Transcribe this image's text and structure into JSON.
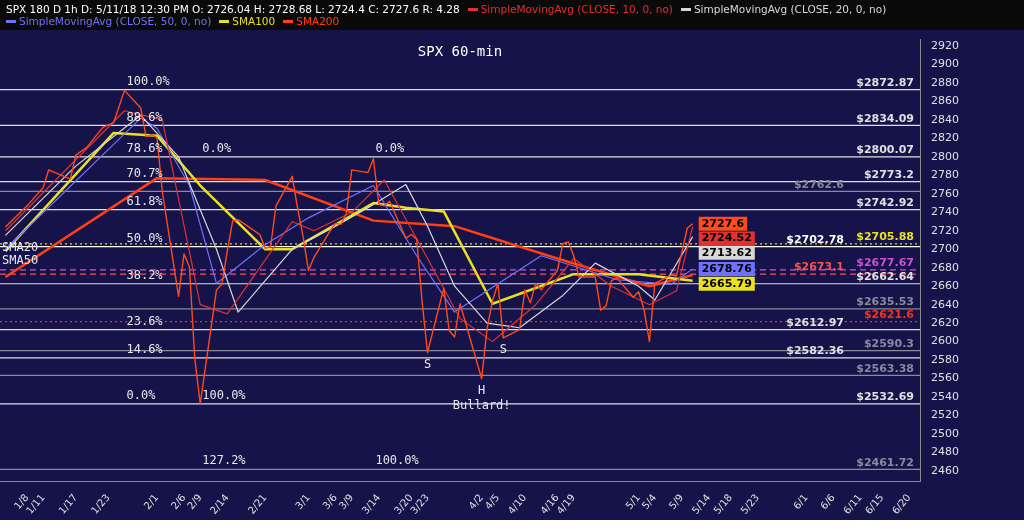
{
  "chart_data": {
    "type": "line",
    "title": "SPX 60-min",
    "subtitle": "SPX 180 D 1h  D: 5/11/18 12:30 PM  O: 2726.04  H: 2728.68  L: 2724.4  C: 2727.6  R: 4.28",
    "legend": "top left",
    "xlim": [
      "--01-03",
      "--06-22"
    ],
    "xticks": [
      {
        "value": "--01-08",
        "label": "1/8"
      },
      {
        "value": "--01-11",
        "label": "1/11"
      },
      {
        "value": "--01-17",
        "label": "1/17"
      },
      {
        "value": "--01-23",
        "label": "1/23"
      },
      {
        "value": "--02-01",
        "label": "2/1"
      },
      {
        "value": "--02-06",
        "label": "2/6"
      },
      {
        "value": "--02-09",
        "label": "2/9"
      },
      {
        "value": "--02-14",
        "label": "2/14"
      },
      {
        "value": "--02-21",
        "label": "2/21"
      },
      {
        "value": "--03-01",
        "label": "3/1"
      },
      {
        "value": "--03-06",
        "label": "3/6"
      },
      {
        "value": "--03-09",
        "label": "3/9"
      },
      {
        "value": "--03-14",
        "label": "3/14"
      },
      {
        "value": "--03-20",
        "label": "3/20"
      },
      {
        "value": "--03-23",
        "label": "3/23"
      },
      {
        "value": "--04-02",
        "label": "4/2"
      },
      {
        "value": "--04-05",
        "label": "4/5"
      },
      {
        "value": "--04-10",
        "label": "4/10"
      },
      {
        "value": "--04-16",
        "label": "4/16"
      },
      {
        "value": "--04-19",
        "label": "4/19"
      },
      {
        "value": "--05-01",
        "label": "5/1"
      },
      {
        "value": "--05-04",
        "label": "5/4"
      },
      {
        "value": "--05-09",
        "label": "5/9"
      },
      {
        "value": "--05-14",
        "label": "5/14"
      },
      {
        "value": "--05-18",
        "label": "5/18"
      },
      {
        "value": "--05-23",
        "label": "5/23"
      },
      {
        "value": "--06-01",
        "label": "6/1"
      },
      {
        "value": "--06-06",
        "label": "6/6"
      },
      {
        "value": "--06-11",
        "label": "6/11"
      },
      {
        "value": "--06-15",
        "label": "6/15"
      },
      {
        "value": "--06-20",
        "label": "6/20"
      }
    ],
    "ylim": [
      2449,
      2927
    ],
    "yticks": [
      2460,
      2480,
      2500,
      2520,
      2540,
      2560,
      2580,
      2600,
      2620,
      2640,
      2660,
      2680,
      2700,
      2720,
      2740,
      2760,
      2780,
      2800,
      2820,
      2840,
      2860,
      2880,
      2900,
      2920
    ],
    "series": [
      {
        "color": "#ff4a1a",
        "x": [
          "--01-04",
          "--01-08",
          "--01-11",
          "--01-12",
          "--01-16",
          "--01-17",
          "--01-19",
          "--01-22",
          "--01-24",
          "--01-26",
          "--01-29",
          "--01-30",
          "--01-31",
          "--02-01",
          "--02-02",
          "--02-05",
          "--02-06",
          "--02-07",
          "--02-08",
          "--02-09",
          "--02-12",
          "--02-13",
          "--02-14",
          "--02-15",
          "--02-16",
          "--02-20",
          "--02-21",
          "--02-22",
          "--02-23",
          "--02-26",
          "--02-27",
          "--02-28",
          "--03-01",
          "--03-02",
          "--03-05",
          "--03-06",
          "--03-07",
          "--03-08",
          "--03-09",
          "--03-12",
          "--03-13",
          "--03-14",
          "--03-15",
          "--03-16",
          "--03-19",
          "--03-20",
          "--03-21",
          "--03-22",
          "--03-23",
          "--03-26",
          "--03-27",
          "--03-28",
          "--03-29",
          "--04-02",
          "--04-03",
          "--04-04",
          "--04-05",
          "--04-06",
          "--04-09",
          "--04-10",
          "--04-11",
          "--04-12",
          "--04-13",
          "--04-16",
          "--04-17",
          "--04-18",
          "--04-19",
          "--04-20",
          "--04-23",
          "--04-24",
          "--04-25",
          "--04-26",
          "--04-27",
          "--04-30",
          "--05-01",
          "--05-02",
          "--05-03",
          "--05-04",
          "--05-07",
          "--05-08",
          "--05-09",
          "--05-10",
          "--05-11"
        ],
        "values": [
          2724,
          2747,
          2767,
          2786,
          2776,
          2802,
          2810,
          2832,
          2837,
          2872,
          2853,
          2822,
          2824,
          2821,
          2762,
          2649,
          2695,
          2681,
          2581,
          2533,
          2656,
          2662,
          2698,
          2731,
          2732,
          2716,
          2701,
          2703,
          2747,
          2779,
          2744,
          2714,
          2677,
          2691,
          2720,
          2728,
          2727,
          2739,
          2786,
          2783,
          2798,
          2749,
          2747,
          2752,
          2712,
          2716,
          2711,
          2643,
          2588,
          2658,
          2612,
          2605,
          2641,
          2560,
          2614,
          2644,
          2663,
          2604,
          2613,
          2656,
          2642,
          2663,
          2656,
          2677,
          2706,
          2708,
          2693,
          2670,
          2670,
          2634,
          2639,
          2666,
          2669,
          2648,
          2654,
          2635,
          2600,
          2663,
          2672,
          2671,
          2697,
          2723,
          2727.6
        ],
        "value_labels": [
          null,
          null,
          null,
          null,
          null,
          null,
          null,
          null,
          null,
          null,
          null,
          null,
          null,
          null,
          null,
          null,
          null,
          null,
          null,
          null,
          null,
          null,
          null,
          null,
          null,
          null,
          null,
          null,
          null,
          null,
          null,
          null,
          null,
          null,
          null,
          null,
          null,
          null,
          null,
          null,
          null,
          null,
          null,
          null,
          null,
          null,
          null,
          null,
          null,
          null,
          null,
          null,
          null,
          null,
          null,
          null,
          null,
          null,
          null,
          null,
          null,
          null,
          null,
          null,
          null,
          null,
          null,
          null,
          null,
          null,
          null,
          null,
          null,
          null,
          null,
          null,
          null,
          null,
          null,
          null,
          null,
          null,
          "2727.6"
        ]
      },
      {
        "name": "SimpleMovingAvg (CLOSE, 10, 0, no)",
        "color": "#e03030",
        "x": [
          "--01-04",
          "--01-26",
          "--02-02",
          "--02-09",
          "--02-14",
          "--02-26",
          "--03-02",
          "--03-09",
          "--03-15",
          "--03-23",
          "--03-29",
          "--04-04",
          "--04-12",
          "--04-19",
          "--04-26",
          "--05-03",
          "--05-08",
          "--05-11"
        ],
        "values": [
          2720,
          2850,
          2840,
          2640,
          2630,
          2730,
          2720,
          2740,
          2775,
          2690,
          2625,
          2600,
          2640,
          2690,
          2660,
          2640,
          2655,
          2724.52
        ],
        "value_labels": [
          null,
          null,
          null,
          null,
          null,
          null,
          null,
          null,
          null,
          null,
          null,
          null,
          null,
          null,
          null,
          null,
          null,
          "2724.52"
        ]
      },
      {
        "name": "SimpleMovingAvg (CLOSE, 20, 0, no)",
        "color": "#d8d8d8",
        "x": [
          "--01-04",
          "--01-17",
          "--01-29",
          "--02-05",
          "--02-12",
          "--02-16",
          "--02-26",
          "--03-06",
          "--03-12",
          "--03-19",
          "--03-23",
          "--03-28",
          "--04-03",
          "--04-09",
          "--04-17",
          "--04-23",
          "--05-01",
          "--05-04",
          "--05-11"
        ],
        "values": [
          2715,
          2790,
          2845,
          2800,
          2700,
          2632,
          2700,
          2725,
          2745,
          2770,
          2725,
          2660,
          2620,
          2615,
          2650,
          2685,
          2660,
          2645,
          2713.62
        ],
        "value_labels": [
          null,
          null,
          null,
          null,
          null,
          null,
          null,
          null,
          null,
          null,
          null,
          null,
          null,
          null,
          null,
          null,
          null,
          null,
          "2713.62"
        ]
      },
      {
        "name": "SimpleMovingAvg (CLOSE, 50, 0, no)",
        "color": "#7070ff",
        "x": [
          "--01-04",
          "--01-29",
          "--02-01",
          "--02-07",
          "--02-12",
          "--02-21",
          "--03-01",
          "--03-13",
          "--03-21",
          "--03-28",
          "--04-13",
          "--04-27",
          "--05-07",
          "--05-11"
        ],
        "values": [
          2700,
          2842,
          2831,
          2769,
          2663,
          2705,
          2734,
          2769,
          2693,
          2632,
          2693,
          2667,
          2662,
          2678.76
        ],
        "value_labels": [
          null,
          null,
          null,
          null,
          null,
          null,
          null,
          null,
          null,
          null,
          null,
          null,
          null,
          "2678.76"
        ]
      },
      {
        "name": "SMA100",
        "color": "#e8e020",
        "x": [
          "--01-04",
          "--01-24",
          "--02-01",
          "--02-09",
          "--02-21",
          "--02-26",
          "--03-13",
          "--03-19",
          "--03-26",
          "--04-04",
          "--04-19",
          "--05-01",
          "--05-11"
        ],
        "values": [
          2698,
          2826,
          2823,
          2769,
          2700,
          2700,
          2750,
          2745,
          2741,
          2641,
          2673,
          2673,
          2665.79
        ],
        "value_labels": [
          null,
          null,
          null,
          null,
          null,
          null,
          null,
          null,
          null,
          null,
          null,
          null,
          "2665.79"
        ]
      },
      {
        "name": "SMA200",
        "color": "#ff4010",
        "x": [
          "--01-04",
          "--02-01",
          "--02-21",
          "--03-13",
          "--03-28",
          "--04-16",
          "--05-03",
          "--05-11"
        ],
        "values": [
          2670,
          2777,
          2775,
          2731,
          2725,
          2690,
          2660,
          2672
        ]
      }
    ],
    "ref_lines": [
      {
        "axis": "y",
        "value": 2872.87,
        "label": "$2872.87",
        "color": "#e0e0e0"
      },
      {
        "axis": "y",
        "value": 2834.09,
        "label": "$2834.09",
        "color": "#e0e0e0"
      },
      {
        "axis": "y",
        "value": 2800.07,
        "label": "$2800.07",
        "color": "#e0e0e0"
      },
      {
        "axis": "y",
        "value": 2773.2,
        "label": "$2773.2",
        "color": "#e0e0e0"
      },
      {
        "axis": "y",
        "value": 2762.6,
        "label": "$2762.6",
        "color": "#8a8a9a"
      },
      {
        "axis": "y",
        "value": 2742.92,
        "label": "$2742.92",
        "color": "#e0e0e0"
      },
      {
        "axis": "y",
        "value": 2705.88,
        "label": "$2705.88",
        "color": "#e8e020",
        "line_style": "dotted"
      },
      {
        "axis": "y",
        "value": 2702.78,
        "label": "$2702.78",
        "color": "#ffffff"
      },
      {
        "axis": "y",
        "value": 2677.67,
        "label": "$2677.67",
        "color": "#d050d0",
        "line_style": "dashed"
      },
      {
        "axis": "y",
        "value": 2673.1,
        "label": "$2673.1",
        "color": "#ff5050",
        "line_style": "dashed"
      },
      {
        "axis": "y",
        "value": 2662.64,
        "label": "$2662.64",
        "color": "#e0e0e0"
      },
      {
        "axis": "y",
        "value": 2635.53,
        "label": "$2635.53",
        "color": "#8a8a9a"
      },
      {
        "axis": "y",
        "value": 2621.6,
        "label": "$2621.6",
        "color": "#ff3010",
        "line_style": "dotted"
      },
      {
        "axis": "y",
        "value": 2612.97,
        "label": "$2612.97",
        "color": "#e0e0e0"
      },
      {
        "axis": "y",
        "value": 2590.3,
        "label": "$2590.3",
        "color": "#8a8a9a"
      },
      {
        "axis": "y",
        "value": 2582.36,
        "label": "$2582.36",
        "color": "#e0e0e0"
      },
      {
        "axis": "y",
        "value": 2563.38,
        "label": "$2563.38",
        "color": "#8a8a9a"
      },
      {
        "axis": "y",
        "value": 2532.69,
        "label": "$2532.69",
        "color": "#e0e0e0"
      },
      {
        "axis": "y",
        "value": 2461.72,
        "label": "$2461.72",
        "color": "#8a8a9a"
      }
    ],
    "annotations": [
      {
        "text": "100.0%",
        "x": "--01-26",
        "y": 2872.87
      },
      {
        "text": "88.6%",
        "x": "--01-26",
        "y": 2834.09
      },
      {
        "text": "78.6%",
        "x": "--01-26",
        "y": 2800.07
      },
      {
        "text": "70.7%",
        "x": "--01-26",
        "y": 2773.2
      },
      {
        "text": "61.8%",
        "x": "--01-26",
        "y": 2742.92
      },
      {
        "text": "50.0%",
        "x": "--01-26",
        "y": 2702.78
      },
      {
        "text": "38.2%",
        "x": "--01-26",
        "y": 2662.64
      },
      {
        "text": "23.6%",
        "x": "--01-26",
        "y": 2612.97
      },
      {
        "text": "14.6%",
        "x": "--01-26",
        "y": 2582.36
      },
      {
        "text": "0.0%",
        "x": "--01-26",
        "y": 2532.69
      },
      {
        "text": "0.0%",
        "x": "--02-09",
        "y": 2800.07
      },
      {
        "text": "100.0%",
        "x": "--02-09",
        "y": 2532.69
      },
      {
        "text": "127.2%",
        "x": "--02-09",
        "y": 2461.72
      },
      {
        "text": "0.0%",
        "x": "--03-13",
        "y": 2800.07
      },
      {
        "text": "100.0%",
        "x": "--03-13",
        "y": 2461.72
      },
      {
        "text": "SMA50",
        "x": "--01-04",
        "y": 2700
      },
      {
        "text": "SMA20",
        "x": "--01-04",
        "y": 2715
      },
      {
        "text": "S",
        "x": "--03-23",
        "y": 2588
      },
      {
        "text": "S",
        "x": "--04-06",
        "y": 2604
      },
      {
        "text": "H",
        "x": "--04-02",
        "y": 2560
      },
      {
        "text": "Bullard!",
        "x": "--04-02",
        "y": 2560
      }
    ]
  }
}
